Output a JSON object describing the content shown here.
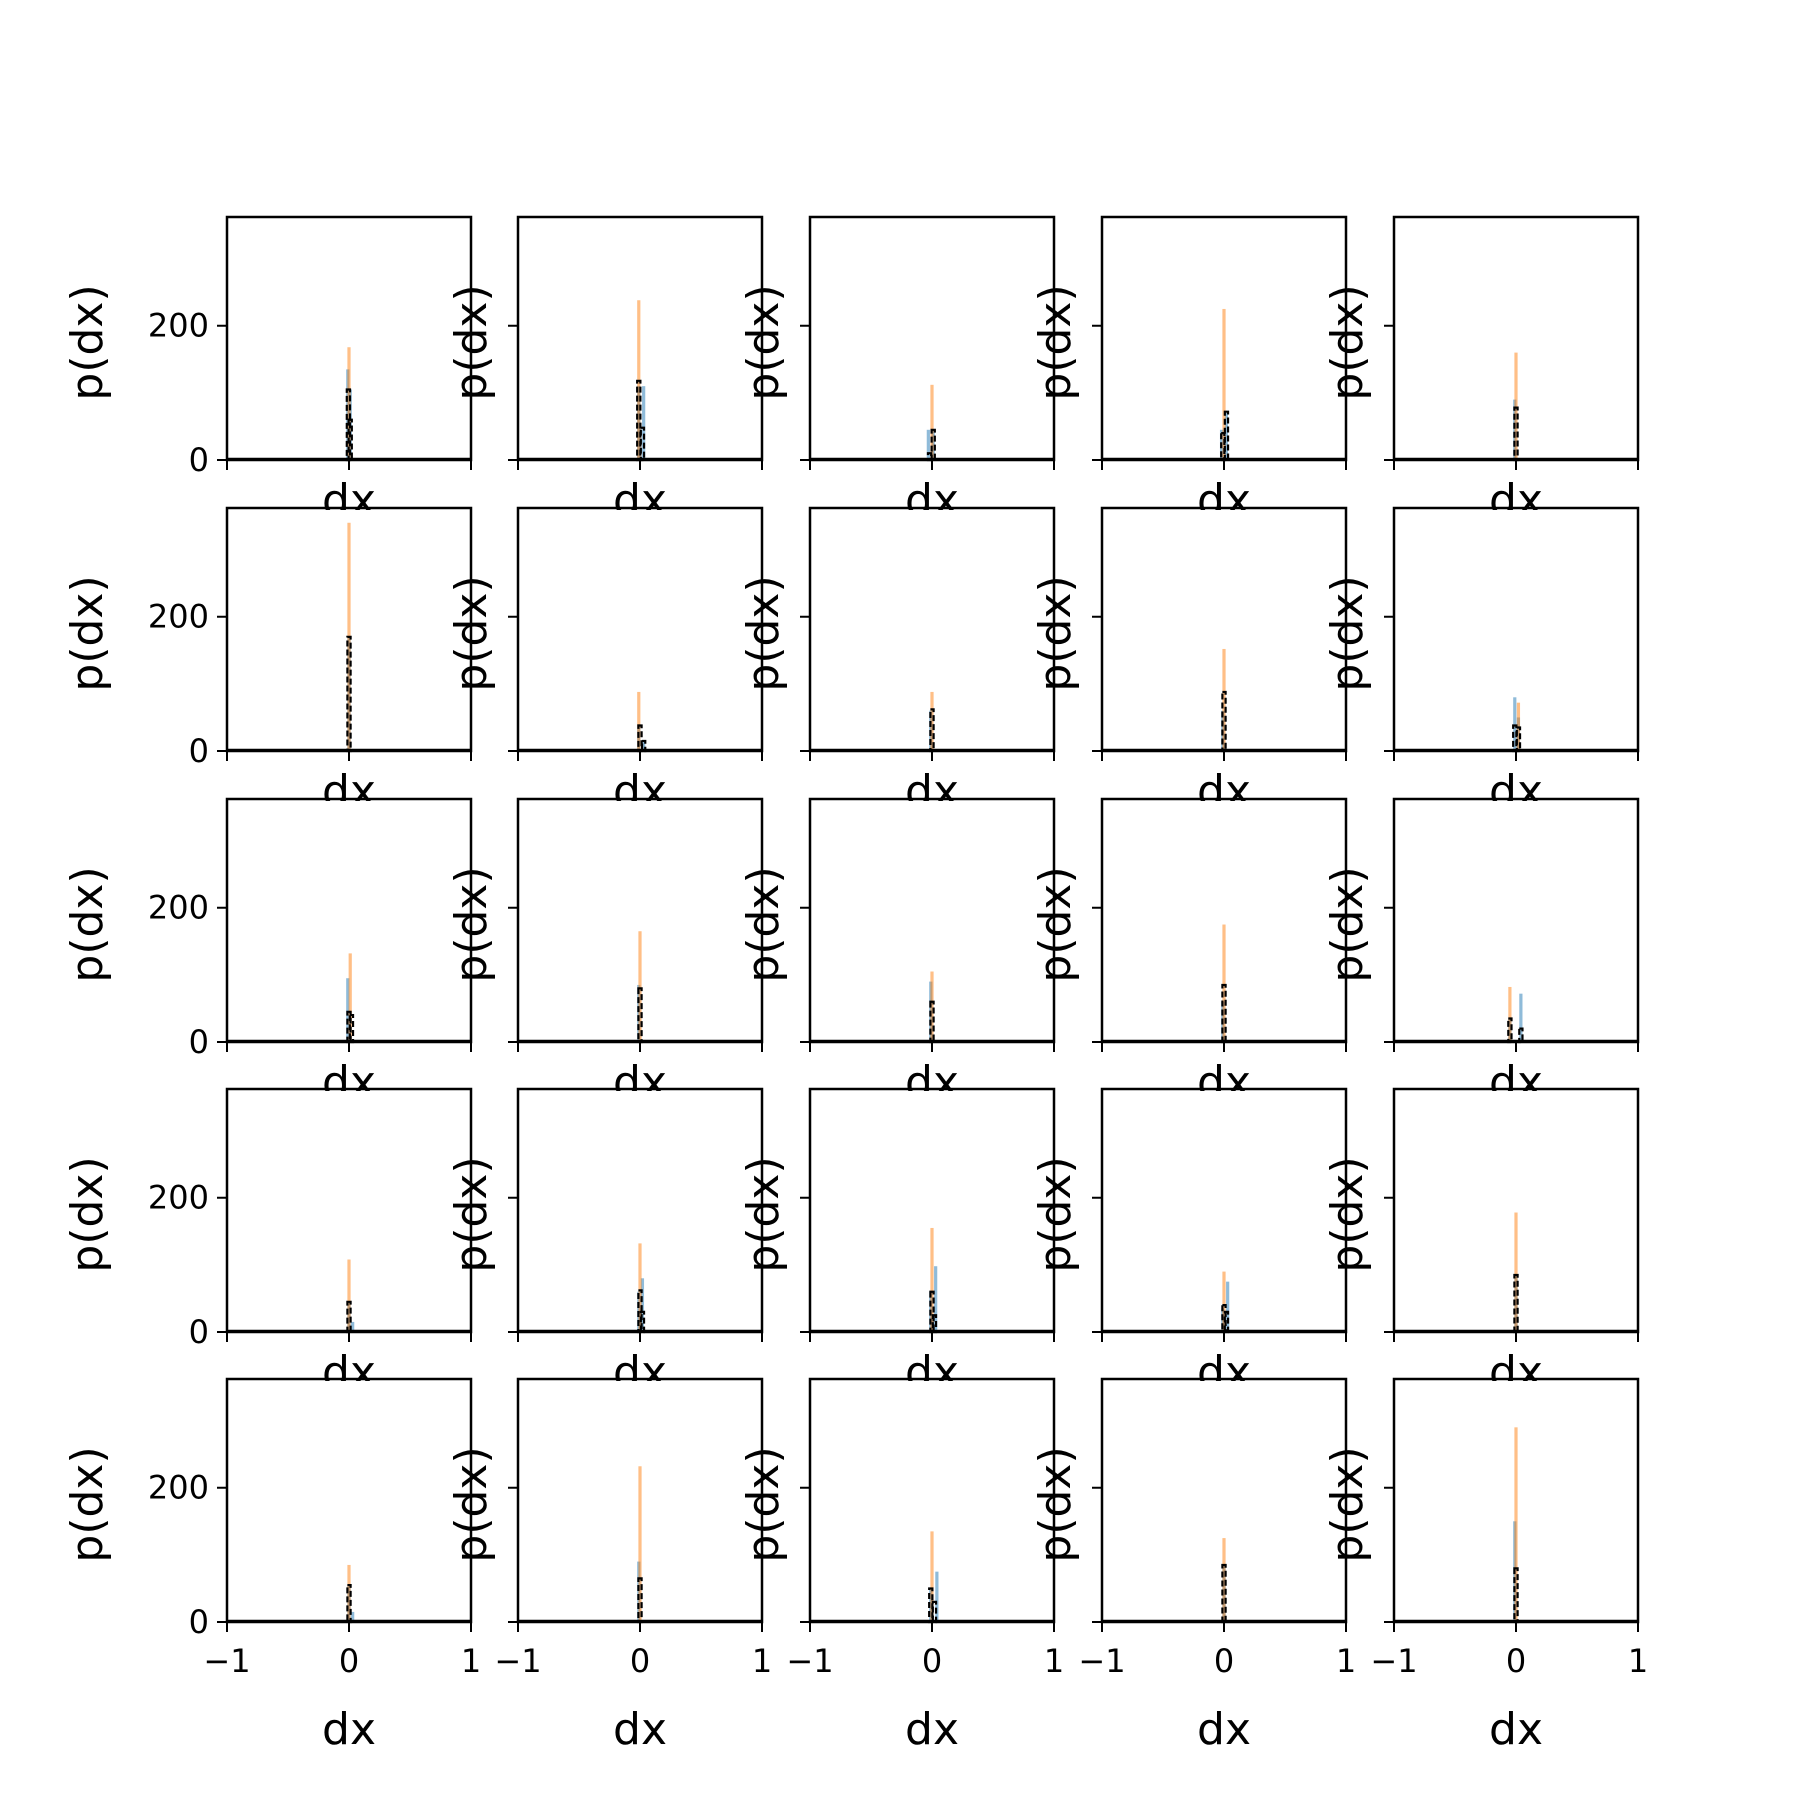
{
  "chart_data": {
    "type": "histogram-grid",
    "rows": 5,
    "cols": 5,
    "xlabel": "dx",
    "ylabel": "p(dx)",
    "xlim": [
      -1,
      1
    ],
    "ylim": [
      0,
      362
    ],
    "xticks": [
      -1,
      0,
      1
    ],
    "xtick_labels": [
      "−1",
      "0",
      "1"
    ],
    "yticks": [
      0,
      200
    ],
    "ytick_labels": [
      "0",
      "200"
    ],
    "series_colors": {
      "blue": "#1f77b4",
      "orange": "#ff7f0e",
      "black": "#000000"
    },
    "panels": [
      {
        "blue": [
          [
            -0.01,
            135
          ],
          [
            0.01,
            105
          ]
        ],
        "orange": [
          [
            0.0,
            168
          ]
        ],
        "black": [
          [
            -0.005,
            105
          ],
          [
            0.01,
            60
          ]
        ]
      },
      {
        "blue": [
          [
            -0.01,
            110
          ],
          [
            0.03,
            110
          ]
        ],
        "orange": [
          [
            -0.01,
            238
          ]
        ],
        "black": [
          [
            -0.01,
            118
          ],
          [
            0.02,
            48
          ]
        ]
      },
      {
        "blue": [
          [
            -0.03,
            45
          ],
          [
            0.01,
            45
          ]
        ],
        "orange": [
          [
            0.0,
            112
          ]
        ],
        "black": [
          [
            -0.02,
            10
          ],
          [
            0.01,
            45
          ]
        ]
      },
      {
        "blue": [
          [
            -0.02,
            45
          ],
          [
            0.02,
            70
          ]
        ],
        "orange": [
          [
            0.0,
            225
          ]
        ],
        "black": [
          [
            -0.01,
            40
          ],
          [
            0.02,
            72
          ]
        ]
      },
      {
        "blue": [
          [
            -0.01,
            90
          ]
        ],
        "orange": [
          [
            0.0,
            160
          ]
        ],
        "black": [
          [
            0.0,
            78
          ]
        ]
      },
      {
        "blue": [
          [
            0.0,
            170
          ]
        ],
        "orange": [
          [
            0.0,
            340
          ]
        ],
        "black": [
          [
            0.0,
            170
          ]
        ]
      },
      {
        "blue": [
          [
            -0.01,
            40
          ],
          [
            0.03,
            15
          ]
        ],
        "orange": [
          [
            -0.01,
            88
          ]
        ],
        "black": [
          [
            0.0,
            38
          ],
          [
            0.03,
            15
          ]
        ]
      },
      {
        "blue": [
          [
            -0.01,
            60
          ]
        ],
        "orange": [
          [
            0.0,
            88
          ]
        ],
        "black": [
          [
            0.0,
            62
          ]
        ]
      },
      {
        "blue": [
          [
            -0.01,
            60
          ]
        ],
        "orange": [
          [
            0.0,
            152
          ]
        ],
        "black": [
          [
            0.0,
            88
          ]
        ]
      },
      {
        "blue": [
          [
            -0.01,
            80
          ],
          [
            0.02,
            50
          ]
        ],
        "orange": [
          [
            0.02,
            72
          ]
        ],
        "black": [
          [
            -0.01,
            38
          ],
          [
            0.02,
            35
          ]
        ]
      },
      {
        "blue": [
          [
            -0.01,
            95
          ]
        ],
        "orange": [
          [
            0.01,
            132
          ]
        ],
        "black": [
          [
            0.0,
            45
          ],
          [
            0.02,
            40
          ]
        ]
      },
      {
        "blue": [
          [
            -0.01,
            85
          ]
        ],
        "orange": [
          [
            0.0,
            165
          ]
        ],
        "black": [
          [
            0.0,
            80
          ]
        ]
      },
      {
        "blue": [
          [
            -0.01,
            90
          ]
        ],
        "orange": [
          [
            0.0,
            105
          ]
        ],
        "black": [
          [
            0.0,
            60
          ]
        ]
      },
      {
        "blue": [
          [
            -0.01,
            60
          ]
        ],
        "orange": [
          [
            0.0,
            175
          ]
        ],
        "black": [
          [
            0.0,
            85
          ]
        ]
      },
      {
        "blue": [
          [
            -0.05,
            35
          ],
          [
            0.04,
            72
          ]
        ],
        "orange": [
          [
            -0.05,
            82
          ]
        ],
        "black": [
          [
            -0.05,
            35
          ],
          [
            0.04,
            20
          ]
        ]
      },
      {
        "blue": [
          [
            0.0,
            45
          ],
          [
            0.03,
            15
          ]
        ],
        "orange": [
          [
            0.0,
            108
          ]
        ],
        "black": [
          [
            0.0,
            45
          ]
        ]
      },
      {
        "blue": [
          [
            -0.01,
            60
          ],
          [
            0.02,
            80
          ]
        ],
        "orange": [
          [
            0.0,
            132
          ]
        ],
        "black": [
          [
            0.0,
            62
          ],
          [
            0.02,
            30
          ]
        ]
      },
      {
        "blue": [
          [
            -0.01,
            60
          ],
          [
            0.03,
            98
          ]
        ],
        "orange": [
          [
            0.0,
            155
          ]
        ],
        "black": [
          [
            0.0,
            60
          ],
          [
            0.02,
            25
          ]
        ]
      },
      {
        "blue": [
          [
            -0.01,
            35
          ],
          [
            0.03,
            75
          ]
        ],
        "orange": [
          [
            0.0,
            90
          ]
        ],
        "black": [
          [
            0.0,
            40
          ],
          [
            0.02,
            30
          ]
        ]
      },
      {
        "blue": [
          [
            0.0,
            85
          ]
        ],
        "orange": [
          [
            0.0,
            178
          ]
        ],
        "black": [
          [
            0.0,
            85
          ]
        ]
      },
      {
        "blue": [
          [
            0.0,
            55
          ],
          [
            0.03,
            15
          ]
        ],
        "orange": [
          [
            0.0,
            85
          ]
        ],
        "black": [
          [
            0.0,
            55
          ]
        ]
      },
      {
        "blue": [
          [
            -0.01,
            90
          ]
        ],
        "orange": [
          [
            0.0,
            232
          ]
        ],
        "black": [
          [
            0.0,
            65
          ]
        ]
      },
      {
        "blue": [
          [
            -0.01,
            50
          ],
          [
            0.04,
            75
          ]
        ],
        "orange": [
          [
            0.0,
            135
          ]
        ],
        "black": [
          [
            -0.01,
            50
          ],
          [
            0.02,
            30
          ]
        ]
      },
      {
        "blue": [
          [
            0.0,
            85
          ]
        ],
        "orange": [
          [
            0.0,
            125
          ]
        ],
        "black": [
          [
            0.0,
            85
          ]
        ]
      },
      {
        "blue": [
          [
            -0.01,
            150
          ]
        ],
        "orange": [
          [
            0.0,
            290
          ]
        ],
        "black": [
          [
            0.0,
            80
          ]
        ]
      }
    ]
  }
}
